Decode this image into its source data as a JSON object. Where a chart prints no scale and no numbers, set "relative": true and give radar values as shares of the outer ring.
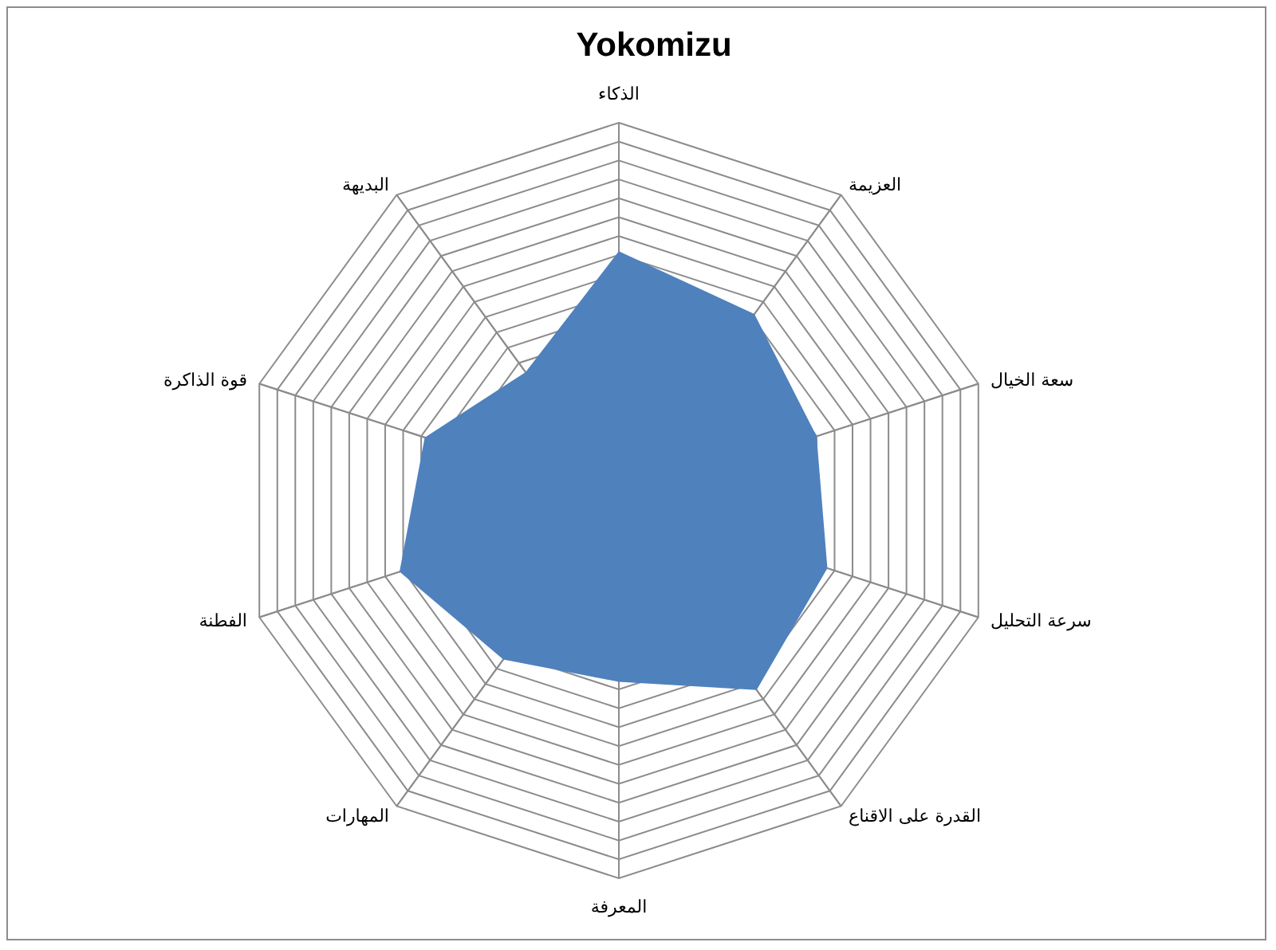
{
  "chart_data": {
    "type": "radar",
    "title": "Yokomizu",
    "categories": [
      "الذكاء",
      "العزيمة",
      "سعة الخيال",
      "سرعة التحليل",
      "القدرة على الاقناع",
      "المعرفة",
      "المهارات",
      "الفطنة",
      "قوة الذاكرة",
      "البديهة"
    ],
    "relative": true,
    "series": [
      {
        "color": "#4f81bd",
        "values": [
          0.66,
          0.61,
          0.55,
          0.58,
          0.62,
          0.48,
          0.52,
          0.61,
          0.54,
          0.42
        ]
      }
    ],
    "grid": true
  }
}
